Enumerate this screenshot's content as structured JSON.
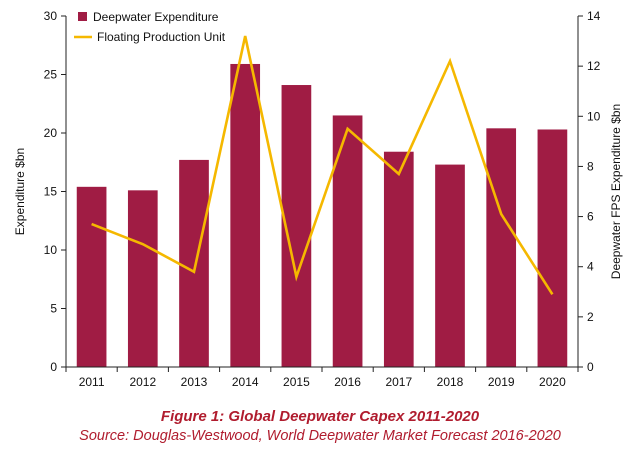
{
  "chart_data": {
    "type": "bar",
    "categories": [
      "2011",
      "2012",
      "2013",
      "2014",
      "2015",
      "2016",
      "2017",
      "2018",
      "2019",
      "2020"
    ],
    "series": [
      {
        "name": "Deepwater Expenditure",
        "type": "bar",
        "axis": "left",
        "color": "#a01c44",
        "values": [
          15.4,
          15.1,
          17.7,
          25.9,
          24.1,
          21.5,
          18.4,
          17.3,
          20.4,
          20.3
        ]
      },
      {
        "name": "Floating Production Unit",
        "type": "line",
        "axis": "right",
        "color": "#f5b800",
        "values": [
          5.7,
          4.9,
          3.8,
          13.2,
          3.6,
          9.5,
          7.7,
          12.2,
          6.1,
          2.9
        ]
      }
    ],
    "ylabel": "Expenditure $bn",
    "ylim": [
      0,
      30
    ],
    "yticks": [
      "0",
      "5",
      "10",
      "15",
      "20",
      "25",
      "30"
    ],
    "y2label": "Deepwater FPS Expenditure $bn",
    "y2lim": [
      0,
      14
    ],
    "y2ticks": [
      "0",
      "2",
      "4",
      "6",
      "8",
      "10",
      "12",
      "14"
    ],
    "legend_position": "top-left",
    "grid": false
  },
  "caption": {
    "title": "Figure 1: Global Deepwater Capex 2011-2020",
    "source": "Source: Douglas-Westwood, World Deepwater Market Forecast 2016-2020"
  }
}
